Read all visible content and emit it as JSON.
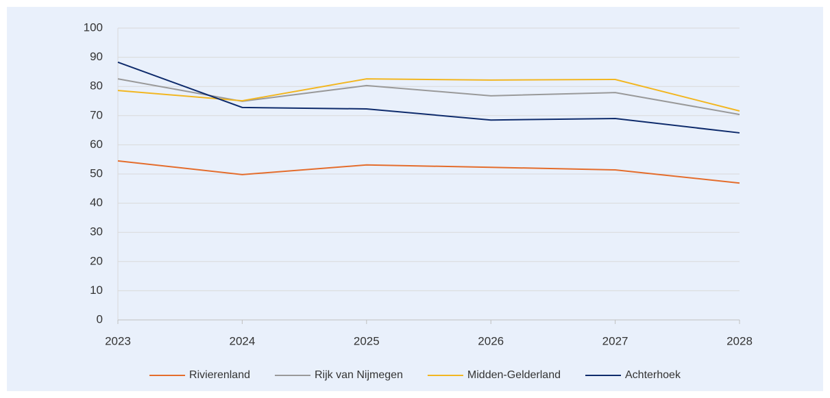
{
  "chart_data": {
    "type": "line",
    "x": [
      2023,
      2024,
      2025,
      2026,
      2027,
      2028
    ],
    "xlim": [
      2023,
      2028
    ],
    "xticks": [
      2023,
      2024,
      2025,
      2026,
      2027,
      2028
    ],
    "ylim": [
      0,
      100
    ],
    "yticks": [
      0,
      10,
      20,
      30,
      40,
      50,
      60,
      70,
      80,
      90,
      100
    ],
    "grid": true,
    "legend": "bottom",
    "series": [
      {
        "name": "Rivierenland",
        "color": "#e46c2b",
        "values": [
          54.5,
          49.8,
          53.1,
          52.3,
          51.4,
          46.9
        ]
      },
      {
        "name": "Rijk van Nijmegen",
        "color": "#999999",
        "values": [
          82.6,
          74.9,
          80.3,
          76.8,
          77.9,
          70.4
        ]
      },
      {
        "name": "Midden-Gelderland",
        "color": "#f2b620",
        "values": [
          78.6,
          75.1,
          82.6,
          82.2,
          82.4,
          71.6
        ]
      },
      {
        "name": "Achterhoek",
        "color": "#0d2a6b",
        "values": [
          88.3,
          72.8,
          72.3,
          68.5,
          69.0,
          64.1
        ]
      }
    ]
  }
}
